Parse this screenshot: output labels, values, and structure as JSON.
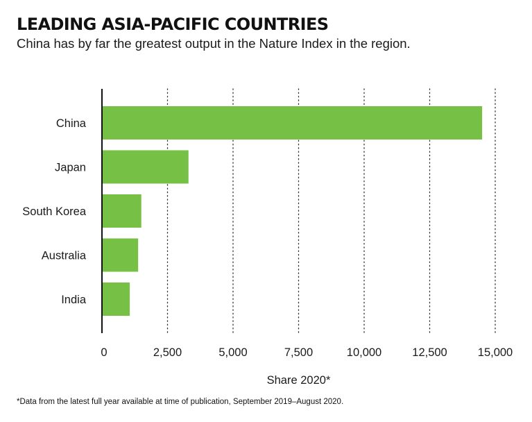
{
  "header": {
    "title": "LEADING ASIA-PACIFIC COUNTRIES",
    "subtitle": "China has by far the greatest output in the Nature Index in the region."
  },
  "footnote": "*Data from the latest full year available at time of publication, September 2019–August 2020.",
  "chart_data": {
    "type": "bar",
    "orientation": "horizontal",
    "title": "LEADING ASIA-PACIFIC COUNTRIES",
    "subtitle": "China has by far the greatest output in the Nature Index in the region.",
    "xlabel": "Share 2020*",
    "ylabel": "",
    "categories": [
      "China",
      "Japan",
      "South Korea",
      "Australia",
      "India"
    ],
    "values": [
      14500,
      3300,
      1500,
      1380,
      1060
    ],
    "xlim": [
      0,
      15000
    ],
    "xticks": [
      0,
      2500,
      5000,
      7500,
      10000,
      12500,
      15000
    ],
    "xtick_labels": [
      "0",
      "2,500",
      "5,000",
      "7,500",
      "10,000",
      "12,500",
      "15,000"
    ],
    "gridlines": "dotted vertical",
    "legend": "none",
    "bar_color": "#76c045",
    "axis_color": "#111111",
    "grid_color": "#333333"
  }
}
